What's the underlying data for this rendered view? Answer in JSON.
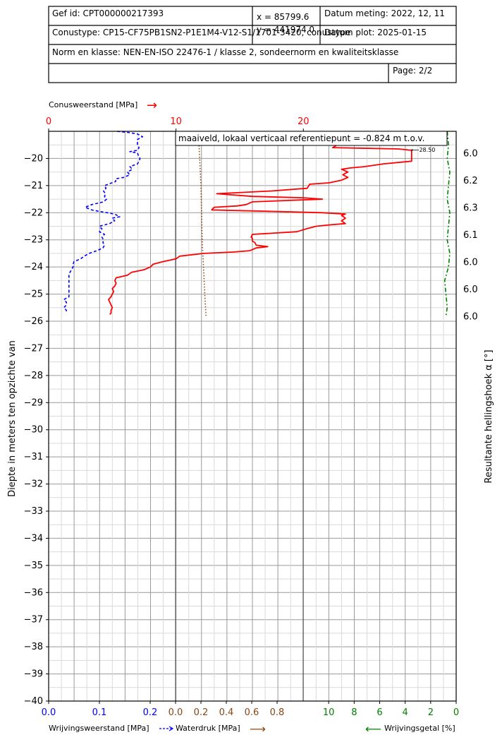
{
  "header": {
    "gef_id": "Gef id: CPT000000217393",
    "x_coord": "x = 85799.6",
    "y_coord": "y = 441974.0",
    "date_measured": "Datum meting: 2022, 12, 11",
    "cone_type": "Conustype: CP15-CF75PB1SN2-P1E1M4-V12-S1/1701-3420, conustype",
    "date_plot": "Datum plot: 2025-01-15",
    "norm": "Norm en klasse: NEN-EN-ISO 22476-1 / klasse 2, sondeernorm en kwaliteitsklasse",
    "page": "Page: 2/2"
  },
  "colors": {
    "cone": "#ff0000",
    "friction": "#0000ff",
    "pore": "#8b4513",
    "ratio": "#008000",
    "grid_major": "#999999",
    "grid_minor": "#d9d9d9"
  },
  "chart_data": {
    "type": "line",
    "ylabel": "Diepte in meters ten opzichte van",
    "right_label": "Resultante hellingshoek α [°]",
    "ylim": [
      -40,
      -19
    ],
    "y_ticks": [
      -20,
      -21,
      -22,
      -23,
      -24,
      -25,
      -26,
      -27,
      -28,
      -29,
      -30,
      -31,
      -32,
      -33,
      -34,
      -35,
      -36,
      -37,
      -38,
      -39,
      -40
    ],
    "annotation": "maaiveld, lokaal verticaal referentiepunt = -0.824   m t.o.v.",
    "arrow_note": "⟵28.50",
    "top_axis": {
      "label": "Conusweerstand [MPa]",
      "arrow": "→",
      "range": [
        0,
        32
      ],
      "ticks": [
        0,
        10,
        20
      ]
    },
    "bottom_axes": [
      {
        "label": "Wrijvingsweerstand [MPa]",
        "range": [
          0,
          0.25
        ],
        "ticks": [
          "0.0",
          "0.1",
          "0.2"
        ],
        "tick_values": [
          0,
          0.1,
          0.2
        ]
      },
      {
        "label": "Waterdruk [MPa]",
        "arrow": "⟶",
        "range": [
          0,
          1.25
        ],
        "ticks": [
          "0.0",
          "0.2",
          "0.4",
          "0.6",
          "0.8"
        ],
        "tick_values": [
          0,
          0.2,
          0.4,
          0.6,
          0.8
        ]
      },
      {
        "label": "Wrijvingsgetal [%]",
        "arrow": "⟵",
        "range": [
          12,
          0
        ],
        "ticks": [
          "10",
          "8",
          "6",
          "4",
          "2",
          "0"
        ],
        "tick_values": [
          10,
          8,
          6,
          4,
          2,
          0
        ]
      }
    ],
    "inclination": [
      {
        "depth": -19.8,
        "value": "6.0"
      },
      {
        "depth": -20.8,
        "value": "6.2"
      },
      {
        "depth": -21.8,
        "value": "6.3"
      },
      {
        "depth": -22.8,
        "value": "6.1"
      },
      {
        "depth": -23.8,
        "value": "6.0"
      },
      {
        "depth": -24.8,
        "value": "6.0"
      },
      {
        "depth": -25.8,
        "value": "6.0"
      }
    ],
    "series": [
      {
        "name": "Conusweerstand [MPa]",
        "points": [
          [
            24.0,
            -19.0
          ],
          [
            23.0,
            -19.4
          ],
          [
            22.3,
            -19.6
          ],
          [
            27.5,
            -19.65
          ],
          [
            28.5,
            -19.7
          ],
          [
            28.5,
            -20.1
          ],
          [
            26.3,
            -20.2
          ],
          [
            24.8,
            -20.3
          ],
          [
            23.7,
            -20.35
          ],
          [
            23.0,
            -20.4
          ],
          [
            23.5,
            -20.5
          ],
          [
            23.1,
            -20.6
          ],
          [
            23.5,
            -20.7
          ],
          [
            23.0,
            -20.8
          ],
          [
            22.0,
            -20.9
          ],
          [
            20.5,
            -20.95
          ],
          [
            20.3,
            -21.1
          ],
          [
            17.5,
            -21.2
          ],
          [
            13.2,
            -21.3
          ],
          [
            16.0,
            -21.4
          ],
          [
            20.0,
            -21.45
          ],
          [
            21.5,
            -21.5
          ],
          [
            16.0,
            -21.6
          ],
          [
            15.5,
            -21.7
          ],
          [
            14.8,
            -21.75
          ],
          [
            13.0,
            -21.8
          ],
          [
            12.8,
            -21.9
          ],
          [
            17.5,
            -21.95
          ],
          [
            21.5,
            -22.0
          ],
          [
            23.3,
            -22.05
          ],
          [
            23.0,
            -22.1
          ],
          [
            23.3,
            -22.2
          ],
          [
            23.0,
            -22.3
          ],
          [
            23.3,
            -22.4
          ],
          [
            22.0,
            -22.45
          ],
          [
            21.0,
            -22.5
          ],
          [
            20.2,
            -22.6
          ],
          [
            19.5,
            -22.7
          ],
          [
            16.0,
            -22.8
          ],
          [
            15.9,
            -22.9
          ],
          [
            16.0,
            -22.95
          ],
          [
            16.0,
            -23.05
          ],
          [
            16.2,
            -23.1
          ],
          [
            16.3,
            -23.2
          ],
          [
            17.2,
            -23.25
          ],
          [
            16.3,
            -23.3
          ],
          [
            15.8,
            -23.4
          ],
          [
            14.5,
            -23.45
          ],
          [
            12.2,
            -23.5
          ],
          [
            10.3,
            -23.6
          ],
          [
            10.0,
            -23.7
          ],
          [
            9.0,
            -23.8
          ],
          [
            8.2,
            -23.9
          ],
          [
            8.0,
            -24.0
          ],
          [
            7.5,
            -24.1
          ],
          [
            6.5,
            -24.2
          ],
          [
            6.2,
            -24.3
          ],
          [
            5.3,
            -24.4
          ],
          [
            5.2,
            -24.5
          ],
          [
            5.3,
            -24.6
          ],
          [
            5.2,
            -24.7
          ],
          [
            5.0,
            -24.8
          ],
          [
            5.1,
            -24.9
          ],
          [
            5.0,
            -25.0
          ],
          [
            4.9,
            -25.1
          ],
          [
            4.7,
            -25.2
          ],
          [
            4.8,
            -25.3
          ],
          [
            4.9,
            -25.4
          ],
          [
            5.0,
            -25.5
          ],
          [
            4.9,
            -25.6
          ],
          [
            4.9,
            -25.7
          ],
          [
            4.8,
            -25.75
          ]
        ]
      },
      {
        "name": "Wrijvingsweerstand [MPa]",
        "points": [
          [
            0.135,
            -19.0
          ],
          [
            0.16,
            -19.05
          ],
          [
            0.175,
            -19.1
          ],
          [
            0.185,
            -19.2
          ],
          [
            0.175,
            -19.3
          ],
          [
            0.175,
            -19.4
          ],
          [
            0.175,
            -19.5
          ],
          [
            0.178,
            -19.6
          ],
          [
            0.175,
            -19.7
          ],
          [
            0.16,
            -19.75
          ],
          [
            0.175,
            -19.8
          ],
          [
            0.177,
            -19.9
          ],
          [
            0.18,
            -20.0
          ],
          [
            0.178,
            -20.1
          ],
          [
            0.175,
            -20.2
          ],
          [
            0.16,
            -20.3
          ],
          [
            0.165,
            -20.4
          ],
          [
            0.155,
            -20.5
          ],
          [
            0.16,
            -20.6
          ],
          [
            0.148,
            -20.7
          ],
          [
            0.132,
            -20.75
          ],
          [
            0.132,
            -20.85
          ],
          [
            0.11,
            -21.0
          ],
          [
            0.113,
            -21.1
          ],
          [
            0.108,
            -21.2
          ],
          [
            0.112,
            -21.3
          ],
          [
            0.11,
            -21.4
          ],
          [
            0.114,
            -21.5
          ],
          [
            0.108,
            -21.6
          ],
          [
            0.085,
            -21.7
          ],
          [
            0.072,
            -21.8
          ],
          [
            0.085,
            -21.9
          ],
          [
            0.1,
            -21.95
          ],
          [
            0.13,
            -22.05
          ],
          [
            0.14,
            -22.15
          ],
          [
            0.125,
            -22.2
          ],
          [
            0.13,
            -22.3
          ],
          [
            0.12,
            -22.4
          ],
          [
            0.1,
            -22.5
          ],
          [
            0.105,
            -22.6
          ],
          [
            0.1,
            -22.7
          ],
          [
            0.11,
            -22.8
          ],
          [
            0.105,
            -22.9
          ],
          [
            0.108,
            -23.0
          ],
          [
            0.107,
            -23.1
          ],
          [
            0.11,
            -23.2
          ],
          [
            0.107,
            -23.3
          ],
          [
            0.095,
            -23.4
          ],
          [
            0.08,
            -23.5
          ],
          [
            0.07,
            -23.6
          ],
          [
            0.063,
            -23.7
          ],
          [
            0.05,
            -23.8
          ],
          [
            0.048,
            -23.9
          ],
          [
            0.048,
            -24.0
          ],
          [
            0.045,
            -24.1
          ],
          [
            0.042,
            -24.2
          ],
          [
            0.04,
            -24.3
          ],
          [
            0.04,
            -24.4
          ],
          [
            0.04,
            -24.5
          ],
          [
            0.04,
            -24.6
          ],
          [
            0.04,
            -24.7
          ],
          [
            0.04,
            -24.8
          ],
          [
            0.04,
            -24.9
          ],
          [
            0.04,
            -25.0
          ],
          [
            0.04,
            -25.1
          ],
          [
            0.03,
            -25.2
          ],
          [
            0.035,
            -25.3
          ],
          [
            0.035,
            -25.4
          ],
          [
            0.03,
            -25.5
          ],
          [
            0.035,
            -25.6
          ],
          [
            0.035,
            -25.7
          ]
        ]
      },
      {
        "name": "Waterdruk [MPa]",
        "points": [
          [
            0.18,
            -19.0
          ],
          [
            0.19,
            -20.0
          ],
          [
            0.2,
            -21.0
          ],
          [
            0.205,
            -22.0
          ],
          [
            0.21,
            -23.0
          ],
          [
            0.22,
            -24.0
          ],
          [
            0.23,
            -25.0
          ],
          [
            0.24,
            -25.8
          ]
        ]
      },
      {
        "name": "Wrijvingsgetal [%]",
        "points": [
          [
            0.7,
            -19.0
          ],
          [
            0.6,
            -19.5
          ],
          [
            0.7,
            -20.0
          ],
          [
            0.5,
            -20.5
          ],
          [
            0.6,
            -21.0
          ],
          [
            0.7,
            -21.5
          ],
          [
            0.5,
            -22.0
          ],
          [
            0.6,
            -22.5
          ],
          [
            0.7,
            -23.0
          ],
          [
            0.5,
            -23.5
          ],
          [
            0.6,
            -24.0
          ],
          [
            0.9,
            -24.5
          ],
          [
            0.8,
            -25.0
          ],
          [
            0.7,
            -25.5
          ],
          [
            0.8,
            -25.8
          ]
        ]
      }
    ]
  }
}
